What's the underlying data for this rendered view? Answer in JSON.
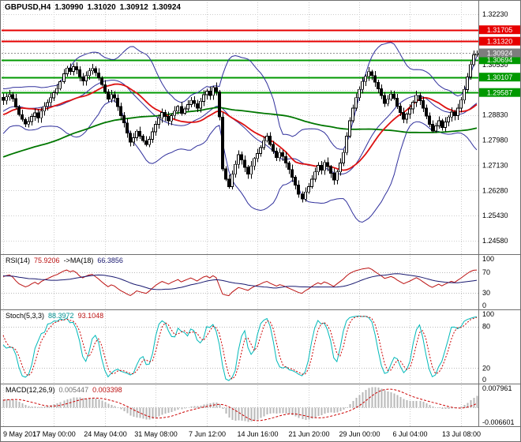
{
  "header": {
    "symbol": "GBPUSD,H4",
    "open": "1.30990",
    "high": "1.31020",
    "low": "1.30912",
    "close": "1.30924"
  },
  "panels": {
    "rsi": {
      "name": "RSI(14)",
      "value": "75.9206",
      "ma_name": "->MA(18)",
      "ma_value": "66.3856"
    },
    "stoch": {
      "name": "Stoch(5,3,3)",
      "value": "88.3972",
      "signal_value": "93.1048"
    },
    "macd": {
      "name": "MACD(12,26,9)",
      "value": "0.005447",
      "signal_value": "0.003398"
    }
  },
  "colors": {
    "grid": "#cdcdcd",
    "frame": "#6f6f6f",
    "axis_text": "#000000",
    "inner_level": "#b9b9b9"
  },
  "chart_data": [
    {
      "type": "candlestick",
      "title": "GBPUSD,H4 1.30990 1.31020 1.30912 1.30924",
      "timeframe": "H4",
      "ylim": [
        1.2421,
        1.3263
      ],
      "grid_step": 0.0085,
      "y_gridlines": [
        1.3223,
        1.3138,
        1.3053,
        1.2968,
        1.2883,
        1.2798,
        1.2713,
        1.2628,
        1.2543,
        1.2458
      ],
      "y_tick_labels": [
        {
          "label": "1.32230",
          "value": 1.3223
        },
        {
          "label": "1.30530",
          "value": 1.3053
        },
        {
          "label": "1.28830",
          "value": 1.2883
        },
        {
          "label": "1.27980",
          "value": 1.2798
        },
        {
          "label": "1.27130",
          "value": 1.2713
        },
        {
          "label": "1.26280",
          "value": 1.2628
        },
        {
          "label": "1.25430",
          "value": 1.2543
        },
        {
          "label": "1.24580",
          "value": 1.2458
        }
      ],
      "x_labels": [
        "9 May 2017",
        "17 May 00:00",
        "24 May 04:00",
        "31 May 08:00",
        "7 Jun 12:00",
        "14 Jun 16:00",
        "21 Jun 20:00",
        "29 Jun 00:00",
        "6 Jul 04:00",
        "13 Jul 08:00"
      ],
      "bars_per_label": 16,
      "closes": [
        1.2932,
        1.2944,
        1.2952,
        1.2938,
        1.291,
        1.2884,
        1.2868,
        1.2852,
        1.2861,
        1.2878,
        1.289,
        1.2873,
        1.2896,
        1.2912,
        1.2925,
        1.2941,
        1.2958,
        1.2972,
        1.2995,
        1.3022,
        1.3041,
        1.303,
        1.3046,
        1.3035,
        1.3012,
        1.2998,
        1.3016,
        1.3032,
        1.304,
        1.3025,
        1.3008,
        1.2985,
        1.2961,
        1.2936,
        1.2952,
        1.294,
        1.2911,
        1.2881,
        1.2856,
        1.2821,
        1.2791,
        1.2806,
        1.2828,
        1.2811,
        1.2796,
        1.2783,
        1.2801,
        1.2826,
        1.2851,
        1.2872,
        1.2891,
        1.2878,
        1.2863,
        1.2881,
        1.2896,
        1.2911,
        1.2889,
        1.2903,
        1.2918,
        1.2932,
        1.2921,
        1.2906,
        1.2929,
        1.2951,
        1.2963,
        1.2949,
        1.2976,
        1.2961,
        1.2876,
        1.2701,
        1.2666,
        1.2641,
        1.2683,
        1.2716,
        1.2749,
        1.2731,
        1.2706,
        1.2683,
        1.2711,
        1.2736,
        1.2753,
        1.2773,
        1.2796,
        1.2811,
        1.2783,
        1.2761,
        1.2739,
        1.2756,
        1.2743,
        1.2721,
        1.2699,
        1.2673,
        1.2646,
        1.2616,
        1.2599,
        1.2623,
        1.2641,
        1.2666,
        1.2691,
        1.2713,
        1.2696,
        1.2723,
        1.2709,
        1.2686,
        1.2663,
        1.2691,
        1.2721,
        1.2756,
        1.2811,
        1.2863,
        1.2906,
        1.2941,
        1.2969,
        1.2996,
        1.3013,
        1.3029,
        1.3016,
        1.2993,
        1.2971,
        1.2949,
        1.2921,
        1.2936,
        1.2953,
        1.2939,
        1.2913,
        1.2891,
        1.2869,
        1.2886,
        1.2903,
        1.2926,
        1.2949,
        1.2931,
        1.2906,
        1.2879,
        1.2851,
        1.2829,
        1.2846,
        1.2863,
        1.2841,
        1.2859,
        1.2876,
        1.2893,
        1.2881,
        1.2906,
        1.2933,
        1.2969,
        1.3011,
        1.3053,
        1.3086,
        1.3092
      ],
      "prehistory": {
        "bars": 120,
        "start": 1.245,
        "end": 1.2926
      },
      "candle": {
        "bull": "#ffffff",
        "bear": "#000000",
        "outline": "#000000"
      },
      "overlays": {
        "bollinger": {
          "period": 20,
          "deviation": 2,
          "color": "#30309c"
        },
        "ma_fast": {
          "period": 24,
          "color": "#dd1111"
        },
        "ma_slow": {
          "period": 96,
          "color": "#007700"
        }
      },
      "levels": [
        {
          "value": 1.31705,
          "color": "#e60000",
          "label": "1.31705"
        },
        {
          "value": 1.3132,
          "color": "#e60000",
          "label": "1.31320"
        },
        {
          "value": 1.30694,
          "color": "#009900",
          "label": "1.30694"
        },
        {
          "value": 1.30107,
          "color": "#009900",
          "label": "1.30107"
        },
        {
          "value": 1.29587,
          "color": "#009900",
          "label": "1.29587"
        }
      ],
      "current_price": {
        "value": 1.30924,
        "label": "1.30924",
        "color": "#7d7d7d"
      }
    },
    {
      "type": "line",
      "name": "RSI",
      "label": "RSI(14) 75.9206 ->MA(18) 66.3856",
      "period": 14,
      "ma_period": 18,
      "ylim": [
        0,
        100
      ],
      "ticks": [
        {
          "label": "100",
          "value": 100
        },
        {
          "label": "70",
          "value": 70
        },
        {
          "label": "30",
          "value": 30
        },
        {
          "label": "0",
          "value": 0
        }
      ],
      "level_lines": [
        70,
        30
      ],
      "colors": {
        "main": "#bb1111",
        "ma": "#191970"
      }
    },
    {
      "type": "line",
      "name": "Stochastic",
      "label": "Stoch(5,3,3) 88.3972 93.1048",
      "k_period": 5,
      "slowing": 3,
      "d_period": 3,
      "ylim": [
        0,
        100
      ],
      "ticks": [
        {
          "label": "100",
          "value": 100
        },
        {
          "label": "80",
          "value": 80
        },
        {
          "label": "20",
          "value": 20
        },
        {
          "label": "0",
          "value": 0
        }
      ],
      "level_lines": [
        80,
        20
      ],
      "colors": {
        "main": "#00b9b9",
        "signal": "#cc0000"
      }
    },
    {
      "type": "histogram",
      "name": "MACD",
      "label": "MACD(12,26,9) 0.005447 0.003398",
      "fast": 12,
      "slow": 26,
      "signal": 9,
      "ylim": [
        -0.0066,
        0.008
      ],
      "ticks": [
        {
          "label": "0.007961",
          "value": 0.008
        },
        {
          "label": "-0.006601",
          "value": -0.0066
        }
      ],
      "colors": {
        "hist": "#b8b8b8",
        "signal": "#cc0000"
      }
    }
  ]
}
